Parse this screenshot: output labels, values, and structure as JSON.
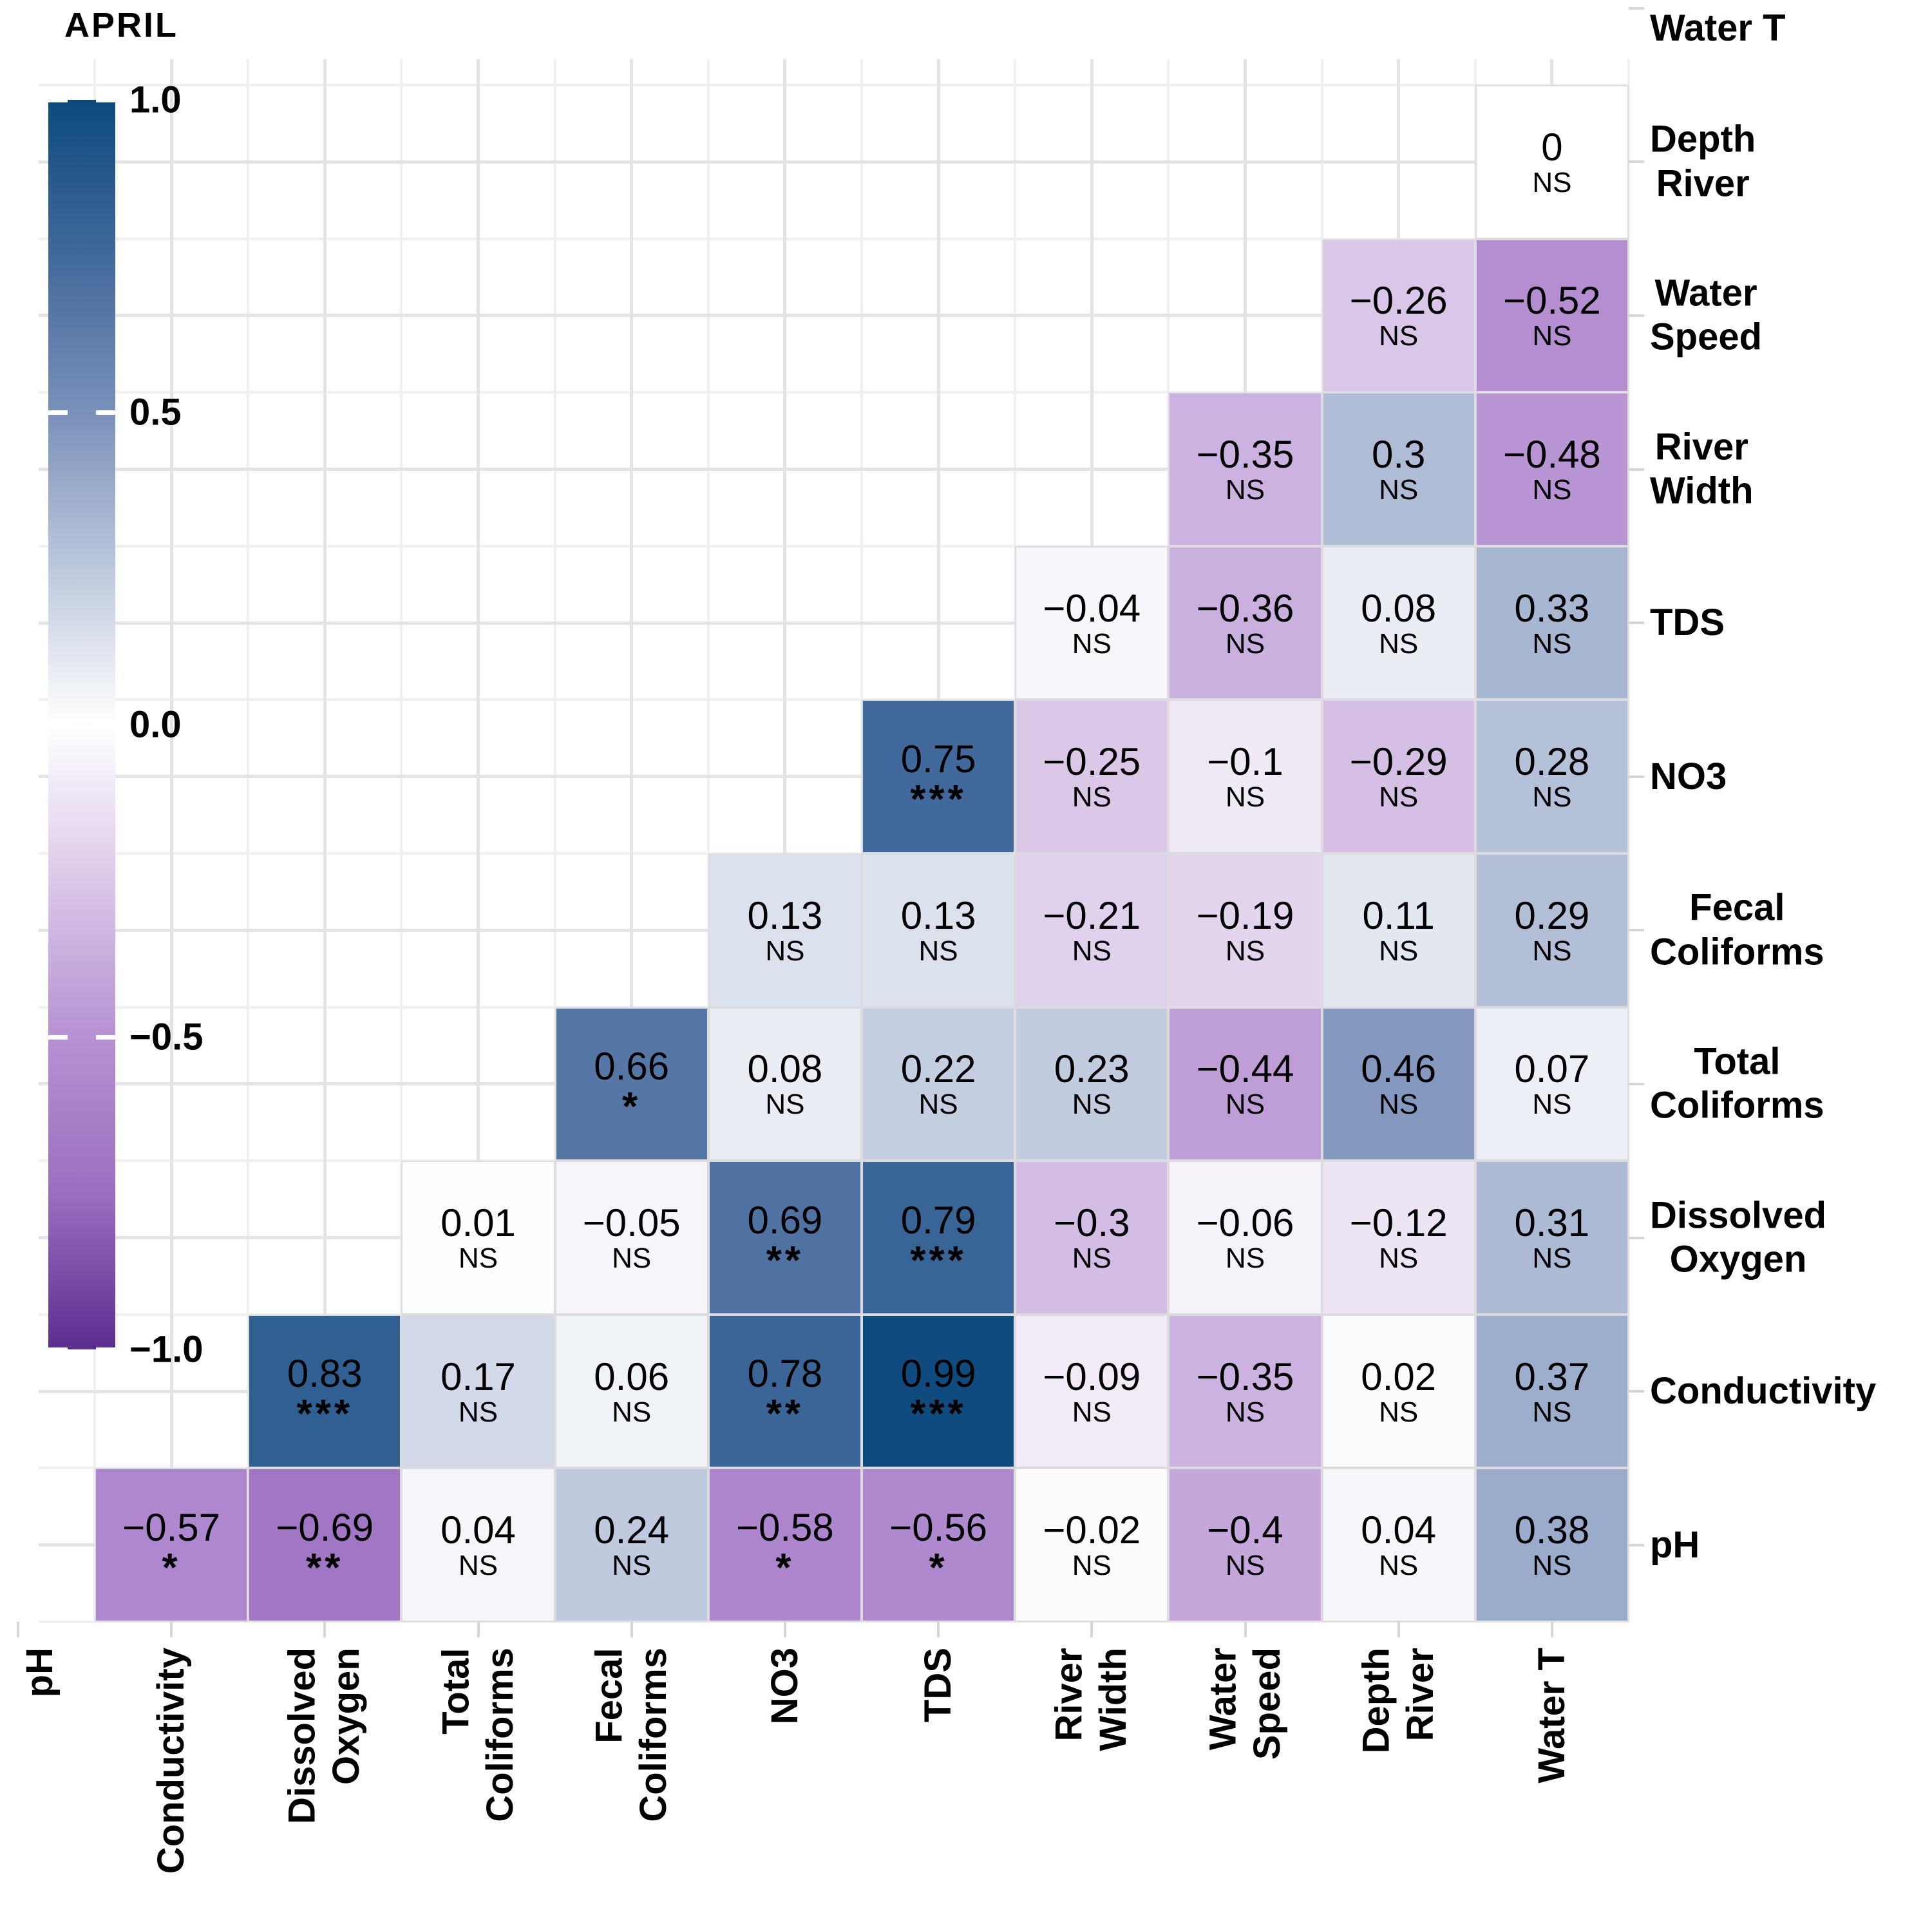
{
  "title": "APRIL",
  "legend": {
    "tick_labels": [
      "1.0",
      "0.5",
      "0.0",
      "−0.5",
      "−1.0"
    ],
    "tick_values": [
      1,
      0.5,
      0,
      -0.5,
      -1
    ]
  },
  "colors": {
    "background": "#ffffff",
    "text": "#000000",
    "gridline_major": "#e4e3e6",
    "gridline_minor": "#f0eff1",
    "tick": "#d6d6d6",
    "cell_border": "#dcdce0",
    "positive_stops": [
      [
        0,
        "#ffffff"
      ],
      [
        0.5,
        "#7a90ba"
      ],
      [
        0.75,
        "#41699b"
      ],
      [
        1,
        "#0d4a7d"
      ]
    ],
    "negative_stops": [
      [
        0,
        "#ffffff"
      ],
      [
        0.5,
        "#b691d3"
      ],
      [
        0.75,
        "#9a6fc0"
      ],
      [
        1,
        "#5b2d90"
      ]
    ]
  },
  "chart_data": {
    "type": "heatmap",
    "title": "APRIL",
    "colorbar_range": [
      -1,
      1
    ],
    "significance_codes": [
      "NS",
      "*",
      "**",
      "***"
    ],
    "columns": [
      "Conductivity",
      "Dissolved Oxygen",
      "Total Coliforms",
      "Fecal Coliforms",
      "NO3",
      "TDS",
      "River Width",
      "Water Speed",
      "Depth River",
      "Water T"
    ],
    "rows": [
      "Depth River",
      "Water Speed",
      "River Width",
      "TDS",
      "NO3",
      "Fecal Coliforms",
      "Total Coliforms",
      "Dissolved Oxygen",
      "Conductivity",
      "pH"
    ],
    "x_axis_display": [
      "pH",
      "Conductivity",
      "Dissolved\nOxygen",
      "Total\nColiforms",
      "Fecal\nColiforms",
      "NO3",
      "TDS",
      "River\nWidth",
      "Water\nSpeed",
      "Depth\nRiver",
      "Water T"
    ],
    "y_axis_display": [
      "Water T",
      "Depth\nRiver",
      "Water\nSpeed",
      "River\nWidth",
      "TDS",
      "NO3",
      "Fecal\nColiforms",
      "Total\nColiforms",
      "Dissolved\nOxygen",
      "Conductivity",
      "pH"
    ],
    "cells": [
      {
        "row": "Depth River",
        "col": "Water T",
        "v": 0,
        "sig": "NS"
      },
      {
        "row": "Water Speed",
        "col": "Depth River",
        "v": -0.26,
        "sig": "NS"
      },
      {
        "row": "Water Speed",
        "col": "Water T",
        "v": -0.52,
        "sig": "NS"
      },
      {
        "row": "River Width",
        "col": "Water Speed",
        "v": -0.35,
        "sig": "NS"
      },
      {
        "row": "River Width",
        "col": "Depth River",
        "v": 0.3,
        "sig": "NS"
      },
      {
        "row": "River Width",
        "col": "Water T",
        "v": -0.48,
        "sig": "NS"
      },
      {
        "row": "TDS",
        "col": "River Width",
        "v": -0.04,
        "sig": "NS"
      },
      {
        "row": "TDS",
        "col": "Water Speed",
        "v": -0.36,
        "sig": "NS"
      },
      {
        "row": "TDS",
        "col": "Depth River",
        "v": 0.08,
        "sig": "NS"
      },
      {
        "row": "TDS",
        "col": "Water T",
        "v": 0.33,
        "sig": "NS"
      },
      {
        "row": "NO3",
        "col": "TDS",
        "v": 0.75,
        "sig": "***"
      },
      {
        "row": "NO3",
        "col": "River Width",
        "v": -0.25,
        "sig": "NS"
      },
      {
        "row": "NO3",
        "col": "Water Speed",
        "v": -0.1,
        "sig": "NS"
      },
      {
        "row": "NO3",
        "col": "Depth River",
        "v": -0.29,
        "sig": "NS"
      },
      {
        "row": "NO3",
        "col": "Water T",
        "v": 0.28,
        "sig": "NS"
      },
      {
        "row": "Fecal Coliforms",
        "col": "NO3",
        "v": 0.13,
        "sig": "NS"
      },
      {
        "row": "Fecal Coliforms",
        "col": "TDS",
        "v": 0.13,
        "sig": "NS"
      },
      {
        "row": "Fecal Coliforms",
        "col": "River Width",
        "v": -0.21,
        "sig": "NS"
      },
      {
        "row": "Fecal Coliforms",
        "col": "Water Speed",
        "v": -0.19,
        "sig": "NS"
      },
      {
        "row": "Fecal Coliforms",
        "col": "Depth River",
        "v": 0.11,
        "sig": "NS"
      },
      {
        "row": "Fecal Coliforms",
        "col": "Water T",
        "v": 0.29,
        "sig": "NS"
      },
      {
        "row": "Total Coliforms",
        "col": "Fecal Coliforms",
        "v": 0.66,
        "sig": "*"
      },
      {
        "row": "Total Coliforms",
        "col": "NO3",
        "v": 0.08,
        "sig": "NS"
      },
      {
        "row": "Total Coliforms",
        "col": "TDS",
        "v": 0.22,
        "sig": "NS"
      },
      {
        "row": "Total Coliforms",
        "col": "River Width",
        "v": 0.23,
        "sig": "NS"
      },
      {
        "row": "Total Coliforms",
        "col": "Water Speed",
        "v": -0.44,
        "sig": "NS"
      },
      {
        "row": "Total Coliforms",
        "col": "Depth River",
        "v": 0.46,
        "sig": "NS"
      },
      {
        "row": "Total Coliforms",
        "col": "Water T",
        "v": 0.07,
        "sig": "NS"
      },
      {
        "row": "Dissolved Oxygen",
        "col": "Total Coliforms",
        "v": 0.01,
        "sig": "NS"
      },
      {
        "row": "Dissolved Oxygen",
        "col": "Fecal Coliforms",
        "v": -0.05,
        "sig": "NS"
      },
      {
        "row": "Dissolved Oxygen",
        "col": "NO3",
        "v": 0.69,
        "sig": "**"
      },
      {
        "row": "Dissolved Oxygen",
        "col": "TDS",
        "v": 0.79,
        "sig": "***"
      },
      {
        "row": "Dissolved Oxygen",
        "col": "River Width",
        "v": -0.3,
        "sig": "NS"
      },
      {
        "row": "Dissolved Oxygen",
        "col": "Water Speed",
        "v": -0.06,
        "sig": "NS"
      },
      {
        "row": "Dissolved Oxygen",
        "col": "Depth River",
        "v": -0.12,
        "sig": "NS"
      },
      {
        "row": "Dissolved Oxygen",
        "col": "Water T",
        "v": 0.31,
        "sig": "NS"
      },
      {
        "row": "Conductivity",
        "col": "Dissolved Oxygen",
        "v": 0.83,
        "sig": "***"
      },
      {
        "row": "Conductivity",
        "col": "Total Coliforms",
        "v": 0.17,
        "sig": "NS"
      },
      {
        "row": "Conductivity",
        "col": "Fecal Coliforms",
        "v": 0.06,
        "sig": "NS"
      },
      {
        "row": "Conductivity",
        "col": "NO3",
        "v": 0.78,
        "sig": "**"
      },
      {
        "row": "Conductivity",
        "col": "TDS",
        "v": 0.99,
        "sig": "***"
      },
      {
        "row": "Conductivity",
        "col": "River Width",
        "v": -0.09,
        "sig": "NS"
      },
      {
        "row": "Conductivity",
        "col": "Water Speed",
        "v": -0.35,
        "sig": "NS"
      },
      {
        "row": "Conductivity",
        "col": "Depth River",
        "v": 0.02,
        "sig": "NS"
      },
      {
        "row": "Conductivity",
        "col": "Water T",
        "v": 0.37,
        "sig": "NS"
      },
      {
        "row": "pH",
        "col": "Conductivity",
        "v": -0.57,
        "sig": "*"
      },
      {
        "row": "pH",
        "col": "Dissolved Oxygen",
        "v": -0.69,
        "sig": "**"
      },
      {
        "row": "pH",
        "col": "Total Coliforms",
        "v": 0.04,
        "sig": "NS"
      },
      {
        "row": "pH",
        "col": "Fecal Coliforms",
        "v": 0.24,
        "sig": "NS"
      },
      {
        "row": "pH",
        "col": "NO3",
        "v": -0.58,
        "sig": "*"
      },
      {
        "row": "pH",
        "col": "TDS",
        "v": -0.56,
        "sig": "*"
      },
      {
        "row": "pH",
        "col": "River Width",
        "v": -0.02,
        "sig": "NS"
      },
      {
        "row": "pH",
        "col": "Water Speed",
        "v": -0.4,
        "sig": "NS"
      },
      {
        "row": "pH",
        "col": "Depth River",
        "v": 0.04,
        "sig": "NS"
      },
      {
        "row": "pH",
        "col": "Water T",
        "v": 0.38,
        "sig": "NS"
      }
    ]
  }
}
